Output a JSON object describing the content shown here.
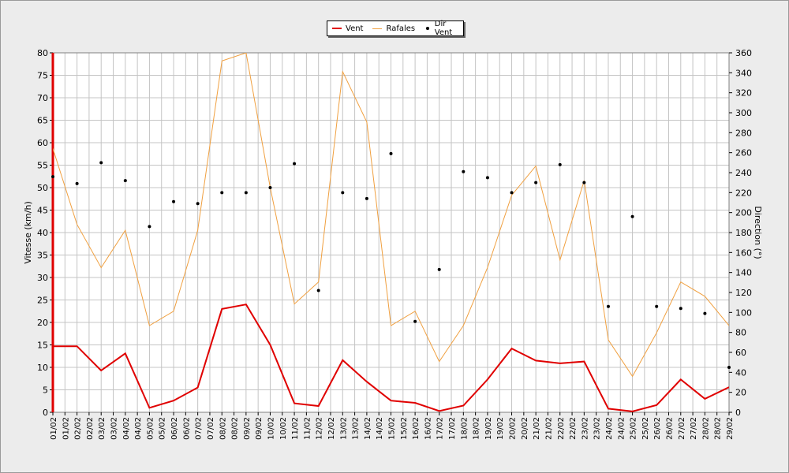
{
  "chart_data": {
    "type": "line",
    "legend": [
      {
        "label": "Vent",
        "color": "#e00000"
      },
      {
        "label": "Rafales",
        "color": "#f0a040"
      },
      {
        "label": "Dir Vent",
        "color": "#000000"
      }
    ],
    "legend_position": "top-center",
    "grid": true,
    "ylabel": "Vitesse (km/h)",
    "y2label": "Direction (°)",
    "ylim": [
      0,
      80
    ],
    "y2lim": [
      0,
      360
    ],
    "yticks": [
      0,
      5,
      10,
      15,
      20,
      25,
      30,
      35,
      40,
      45,
      50,
      55,
      60,
      65,
      70,
      75,
      80
    ],
    "y2ticks": [
      0,
      20,
      40,
      60,
      80,
      100,
      120,
      140,
      160,
      180,
      200,
      220,
      240,
      260,
      280,
      300,
      320,
      340,
      360
    ],
    "x_labels": [
      "01/02",
      "01/02",
      "02/02",
      "02/02",
      "03/02",
      "03/02",
      "04/02",
      "04/02",
      "05/02",
      "05/02",
      "06/02",
      "06/02",
      "07/02",
      "07/02",
      "08/02",
      "08/02",
      "09/02",
      "09/02",
      "10/02",
      "10/02",
      "11/02",
      "11/02",
      "12/02",
      "12/02",
      "13/02",
      "13/02",
      "14/02",
      "14/02",
      "15/02",
      "15/02",
      "16/02",
      "16/02",
      "17/02",
      "17/02",
      "18/02",
      "18/02",
      "19/02",
      "19/02",
      "20/02",
      "20/02",
      "21/02",
      "21/02",
      "22/02",
      "22/02",
      "23/02",
      "23/02",
      "24/02",
      "24/02",
      "25/02",
      "25/02",
      "26/02",
      "26/02",
      "27/02",
      "27/02",
      "28/02",
      "28/02",
      "29/02"
    ],
    "x": [
      "01/02",
      "02/02",
      "03/02",
      "04/02",
      "05/02",
      "06/02",
      "07/02",
      "08/02",
      "09/02",
      "10/02",
      "11/02",
      "12/02",
      "13/02",
      "14/02",
      "15/02",
      "16/02",
      "17/02",
      "18/02",
      "19/02",
      "20/02",
      "21/02",
      "22/02",
      "23/02",
      "24/02",
      "25/02",
      "26/02",
      "27/02",
      "28/02",
      "29/02"
    ],
    "series": [
      {
        "name": "Vent",
        "axis": "left",
        "kind": "line",
        "color": "#e00000",
        "values": [
          14.7,
          14.7,
          9.3,
          13.1,
          1.0,
          2.6,
          5.5,
          23.0,
          24.0,
          15.0,
          2.0,
          1.4,
          11.6,
          6.8,
          2.6,
          2.1,
          0.3,
          1.5,
          7.3,
          14.2,
          11.5,
          10.9,
          11.3,
          0.8,
          0.2,
          1.6,
          7.3,
          3.0,
          5.6
        ]
      },
      {
        "name": "Rafales",
        "axis": "left",
        "kind": "line",
        "color": "#f0a040",
        "values": [
          58.7,
          41.8,
          32.2,
          40.5,
          19.3,
          22.5,
          40.5,
          78.2,
          80.0,
          50.0,
          24.1,
          29.0,
          75.8,
          64.6,
          19.3,
          22.5,
          11.3,
          19.3,
          32.2,
          48.3,
          54.8,
          33.9,
          51.6,
          16.1,
          8.0,
          17.7,
          29.0,
          25.8,
          19.3
        ]
      },
      {
        "name": "Dir Vent",
        "axis": "right",
        "kind": "scatter",
        "color": "#000000",
        "values": [
          236,
          229,
          250,
          232,
          186,
          211,
          209,
          220,
          220,
          225,
          249,
          122,
          220,
          214,
          259,
          91,
          143,
          241,
          235,
          220,
          230,
          248,
          230,
          106,
          196,
          106,
          104,
          99,
          45
        ]
      }
    ]
  }
}
